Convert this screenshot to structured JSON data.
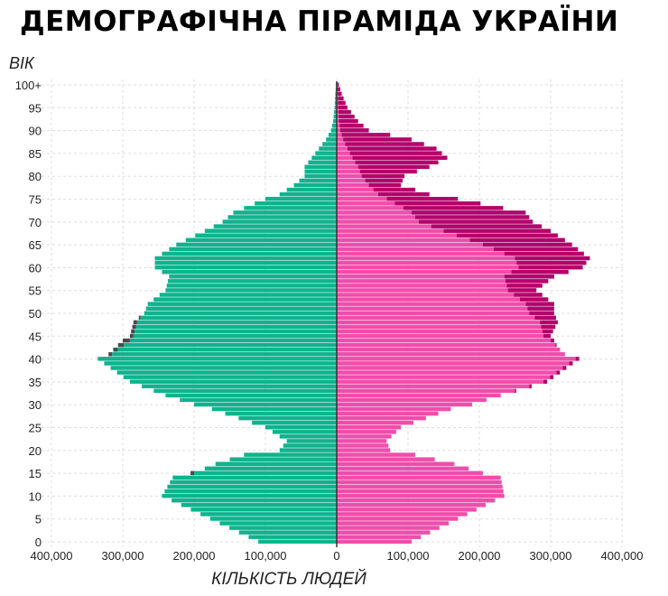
{
  "title": "ДЕМОГРАФІЧНА ПІРАМІДА УКРАЇНИ",
  "chart_data": {
    "type": "bar",
    "orientation": "horizontal-pyramid",
    "title": "ДЕМОГРАФІЧНА ПІРАМІДА УКРАЇНИ",
    "ylabel": "ВІК",
    "xlabel": "КІЛЬКІСТЬ ЛЮДЕЙ",
    "xlim": [
      -400000,
      400000
    ],
    "ylim": [
      0,
      100
    ],
    "x_ticks": [
      {
        "value": -400000,
        "label": "400,000"
      },
      {
        "value": -300000,
        "label": "300,000"
      },
      {
        "value": -200000,
        "label": "200,000"
      },
      {
        "value": -100000,
        "label": "100,000"
      },
      {
        "value": 0,
        "label": "0"
      },
      {
        "value": 100000,
        "label": "100,000"
      },
      {
        "value": 200000,
        "label": "200,000"
      },
      {
        "value": 300000,
        "label": "300,000"
      },
      {
        "value": 400000,
        "label": "400,000"
      }
    ],
    "y_ticks": [
      {
        "value": 0,
        "label": "0"
      },
      {
        "value": 5,
        "label": "5"
      },
      {
        "value": 10,
        "label": "10"
      },
      {
        "value": 15,
        "label": "15"
      },
      {
        "value": 20,
        "label": "20"
      },
      {
        "value": 25,
        "label": "25"
      },
      {
        "value": 30,
        "label": "30"
      },
      {
        "value": 35,
        "label": "35"
      },
      {
        "value": 40,
        "label": "40"
      },
      {
        "value": 45,
        "label": "45"
      },
      {
        "value": 50,
        "label": "50"
      },
      {
        "value": 55,
        "label": "55"
      },
      {
        "value": 60,
        "label": "60"
      },
      {
        "value": 65,
        "label": "65"
      },
      {
        "value": 70,
        "label": "70"
      },
      {
        "value": 75,
        "label": "75"
      },
      {
        "value": 80,
        "label": "80"
      },
      {
        "value": 85,
        "label": "85"
      },
      {
        "value": 90,
        "label": "90"
      },
      {
        "value": 95,
        "label": "95"
      },
      {
        "value": 100,
        "label": "100+"
      }
    ],
    "grid": true,
    "colors": {
      "male": "#0fb38e",
      "male_excess": "#4a4a4a",
      "female": "#f04dab",
      "female_excess": "#b4006a",
      "center_line": "#333333",
      "grid": "#dddddd"
    },
    "age_keys": [
      0,
      10,
      14,
      15,
      17,
      19,
      20,
      22,
      25,
      29,
      30,
      32,
      35,
      40,
      41,
      44,
      45,
      48,
      50,
      52,
      55,
      58,
      60,
      62,
      65,
      68,
      70,
      72,
      75,
      76,
      78,
      80,
      82,
      84,
      86,
      88,
      90,
      92,
      95,
      98,
      100
    ],
    "male_keys": [
      110000,
      245000,
      230000,
      200000,
      170000,
      130000,
      80000,
      70000,
      100000,
      175000,
      200000,
      240000,
      290000,
      335000,
      315000,
      290000,
      285000,
      280000,
      270000,
      265000,
      240000,
      235000,
      255000,
      255000,
      225000,
      185000,
      160000,
      145000,
      100000,
      80000,
      60000,
      45000,
      45000,
      35000,
      25000,
      15000,
      8000,
      5000,
      3000,
      2000,
      1000
    ],
    "female_keys": [
      105000,
      235000,
      230000,
      205000,
      165000,
      110000,
      75000,
      70000,
      90000,
      160000,
      190000,
      230000,
      290000,
      335000,
      320000,
      300000,
      290000,
      285000,
      270000,
      265000,
      240000,
      235000,
      255000,
      250000,
      205000,
      150000,
      115000,
      105000,
      70000,
      58000,
      45000,
      35000,
      30000,
      22000,
      15000,
      9000,
      5000,
      3000,
      2000,
      1500,
      1000
    ],
    "female_total_keys": [
      105000,
      235000,
      230000,
      205000,
      165000,
      110000,
      75000,
      70000,
      90000,
      160000,
      190000,
      230000,
      295000,
      340000,
      315000,
      305000,
      300000,
      310000,
      305000,
      305000,
      280000,
      305000,
      345000,
      355000,
      330000,
      300000,
      275000,
      265000,
      170000,
      130000,
      90000,
      95000,
      130000,
      155000,
      140000,
      105000,
      45000,
      30000,
      15000,
      7000,
      3000
    ]
  }
}
